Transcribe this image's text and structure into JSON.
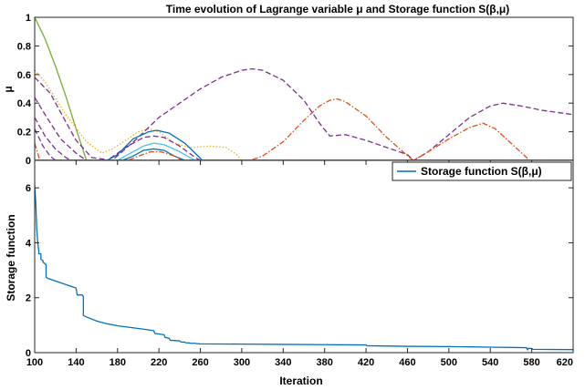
{
  "chart_data": [
    {
      "type": "line",
      "title": "Time evolution of Lagrange variable μ and Storage function S(β,μ)",
      "xlabel": "",
      "ylabel": "μ",
      "xlim": [
        100,
        620
      ],
      "ylim": [
        0,
        1
      ],
      "yticks": [
        0,
        0.2,
        0.4,
        0.6,
        0.8,
        1
      ],
      "yticklabels": [
        "0",
        "0.2",
        "0.4",
        "0.6",
        "0.8",
        "1"
      ],
      "legend": null,
      "series": [
        {
          "color": "#77AC30",
          "style": "solid",
          "x": [
            100,
            110,
            120,
            130,
            140,
            150,
            620
          ],
          "y": [
            1.0,
            0.85,
            0.66,
            0.45,
            0.22,
            0.0,
            0.0
          ]
        },
        {
          "color": "#EDB120",
          "style": "dotted",
          "x": [
            100,
            110,
            130,
            150,
            165,
            175,
            190,
            200,
            210,
            220,
            235,
            250,
            270,
            285,
            295,
            300,
            620
          ],
          "y": [
            0.63,
            0.55,
            0.32,
            0.13,
            0.05,
            0.08,
            0.15,
            0.2,
            0.22,
            0.2,
            0.12,
            0.09,
            0.1,
            0.09,
            0.04,
            0.0,
            0.0
          ]
        },
        {
          "color": "#7E2F8E",
          "style": "dashed",
          "x": [
            100,
            115,
            130,
            140,
            155,
            175,
            200,
            220,
            240,
            260,
            280,
            300,
            310,
            320,
            340,
            360,
            375,
            385,
            400,
            420,
            440,
            460,
            466,
            480,
            500,
            520,
            540,
            552,
            570,
            590,
            610,
            620
          ],
          "y": [
            0.58,
            0.47,
            0.27,
            0.14,
            0.02,
            0.0,
            0.16,
            0.3,
            0.4,
            0.5,
            0.58,
            0.63,
            0.64,
            0.63,
            0.56,
            0.42,
            0.26,
            0.17,
            0.18,
            0.14,
            0.09,
            0.04,
            0.0,
            0.06,
            0.18,
            0.3,
            0.38,
            0.4,
            0.38,
            0.35,
            0.33,
            0.32
          ]
        },
        {
          "color": "#D95319",
          "style": "dashdot",
          "x": [
            100,
            105,
            308,
            320,
            340,
            360,
            375,
            385,
            392,
            400,
            420,
            440,
            462,
            466,
            480,
            500,
            520,
            533,
            545,
            560,
            578,
            620
          ],
          "y": [
            0.12,
            0.0,
            0.0,
            0.03,
            0.13,
            0.28,
            0.38,
            0.42,
            0.43,
            0.41,
            0.31,
            0.16,
            0.02,
            0.0,
            0.06,
            0.15,
            0.23,
            0.26,
            0.22,
            0.12,
            0.0,
            0.0
          ]
        },
        {
          "color": "#7E2F8E",
          "style": "dashed",
          "x": [
            100,
            110,
            125,
            140,
            150,
            170,
            190,
            205,
            215,
            225,
            240,
            255,
            260,
            620
          ],
          "y": [
            0.44,
            0.32,
            0.15,
            0.05,
            0.0,
            0.0,
            0.1,
            0.16,
            0.17,
            0.16,
            0.1,
            0.02,
            0.0,
            0.0
          ]
        },
        {
          "color": "#7E2F8E",
          "style": "dashed",
          "x": [
            100,
            110,
            120,
            130,
            135,
            620
          ],
          "y": [
            0.3,
            0.17,
            0.08,
            0.02,
            0.0,
            0.0
          ]
        },
        {
          "color": "#7E2F8E",
          "style": "dashed",
          "x": [
            100,
            108,
            115,
            120,
            620
          ],
          "y": [
            0.22,
            0.1,
            0.03,
            0.0,
            0.0
          ]
        },
        {
          "color": "#0072BD",
          "style": "solid",
          "x": [
            100,
            170,
            180,
            195,
            210,
            218,
            230,
            245,
            255,
            262,
            620
          ],
          "y": [
            0.0,
            0.0,
            0.04,
            0.15,
            0.2,
            0.21,
            0.19,
            0.12,
            0.05,
            0.0,
            0.0
          ]
        },
        {
          "color": "#4DBEEE",
          "style": "solid",
          "x": [
            100,
            180,
            190,
            205,
            215,
            225,
            240,
            250,
            255,
            620
          ],
          "y": [
            0.0,
            0.0,
            0.04,
            0.1,
            0.12,
            0.11,
            0.06,
            0.02,
            0.0,
            0.0
          ]
        },
        {
          "color": "#0072BD",
          "style": "solid",
          "x": [
            100,
            185,
            195,
            205,
            215,
            225,
            235,
            245,
            620
          ],
          "y": [
            0.0,
            0.0,
            0.03,
            0.07,
            0.08,
            0.07,
            0.03,
            0.0,
            0.0
          ]
        },
        {
          "color": "#D95319",
          "style": "dashdot",
          "x": [
            100,
            190,
            200,
            212,
            222,
            235,
            242,
            620
          ],
          "y": [
            0.0,
            0.0,
            0.03,
            0.06,
            0.06,
            0.03,
            0.0,
            0.0
          ]
        },
        {
          "color": "#77AC30",
          "style": "solid",
          "x": [
            100,
            620
          ],
          "y": [
            0.0,
            0.0
          ]
        }
      ]
    },
    {
      "type": "line",
      "title": "",
      "xlabel": "Iteration",
      "ylabel": "Storage function",
      "xlim": [
        100,
        620
      ],
      "ylim": [
        0,
        7
      ],
      "xticks": [
        100,
        140,
        180,
        220,
        260,
        300,
        340,
        380,
        420,
        460,
        500,
        540,
        580,
        620
      ],
      "xticklabels": [
        "100",
        "140",
        "180",
        "220",
        "260",
        "300",
        "340",
        "380",
        "420",
        "460",
        "500",
        "540",
        "580",
        "620"
      ],
      "yticks": [
        0,
        2,
        4,
        6
      ],
      "yticklabels": [
        "0",
        "2",
        "4",
        "6"
      ],
      "legend": {
        "position": "top-right",
        "entries": [
          "Storage function S(β,μ)"
        ]
      },
      "series": [
        {
          "name": "Storage function S(β,μ)",
          "color": "#0072BD",
          "style": "solid",
          "x": [
            100,
            101,
            102,
            103,
            104,
            104,
            106,
            106,
            108,
            108,
            111,
            111,
            113,
            113,
            140,
            141,
            146,
            147,
            147,
            150,
            160,
            170,
            180,
            190,
            200,
            210,
            215,
            216,
            225,
            226,
            230,
            231,
            240,
            241,
            245,
            246,
            250,
            251,
            255,
            256,
            260,
            300,
            340,
            380,
            420,
            421,
            460,
            500,
            540,
            575,
            576,
            577,
            580,
            581,
            620
          ],
          "y": [
            6.1,
            5.5,
            4.5,
            4.0,
            3.7,
            3.6,
            3.6,
            3.4,
            3.35,
            3.3,
            3.2,
            2.75,
            2.7,
            2.7,
            2.35,
            2.1,
            2.1,
            2.05,
            1.35,
            1.3,
            1.15,
            1.05,
            0.98,
            0.93,
            0.88,
            0.83,
            0.8,
            0.7,
            0.65,
            0.55,
            0.52,
            0.45,
            0.43,
            0.39,
            0.38,
            0.36,
            0.35,
            0.34,
            0.34,
            0.33,
            0.32,
            0.31,
            0.3,
            0.29,
            0.28,
            0.25,
            0.23,
            0.22,
            0.2,
            0.18,
            0.1,
            0.16,
            0.15,
            0.12,
            0.11
          ]
        }
      ]
    }
  ]
}
